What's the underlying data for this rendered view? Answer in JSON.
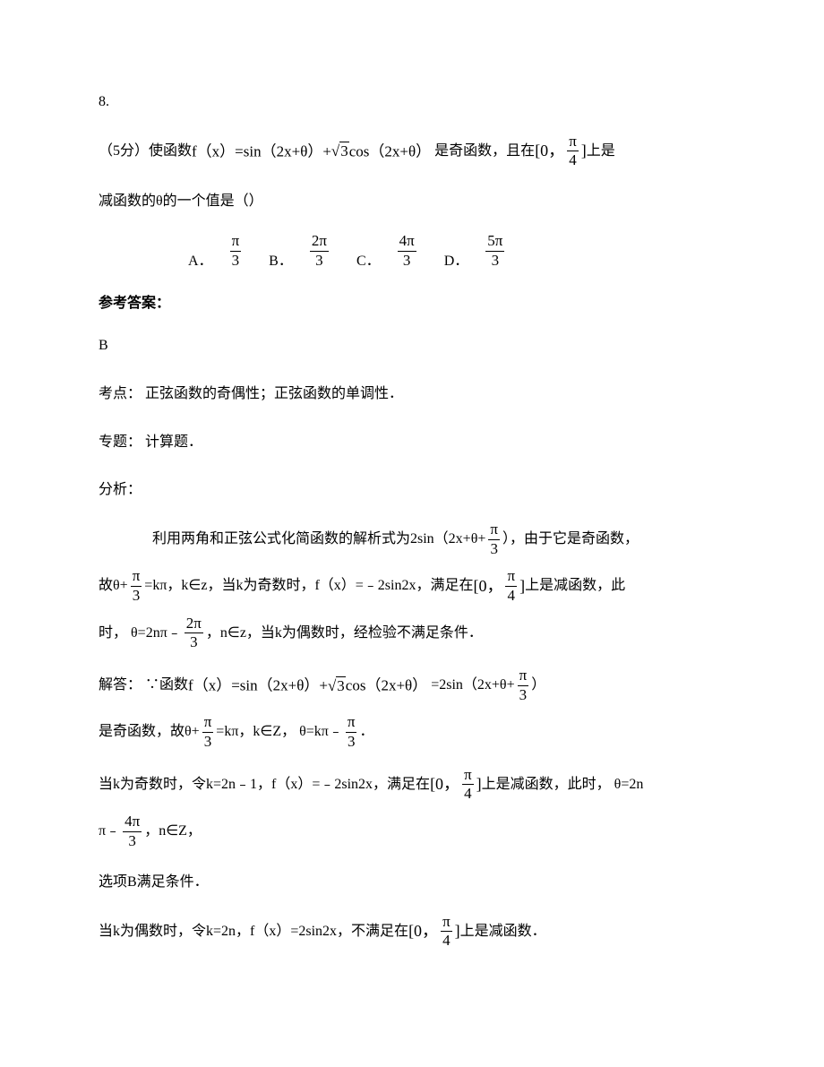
{
  "question_number": "8.",
  "points_prefix": "（5分）使函数",
  "func_expr": "f（x）=sin（2x+θ）+",
  "sqrt_val": "3",
  "func_expr_after": "cos（2x+θ）",
  "after_func": "是奇函数，且在",
  "interval_zero": "[0，",
  "pi_sym": "π",
  "interval_close": "]",
  "denom_4": "4",
  "after_interval": "上是",
  "line2": "减函数的θ的一个值是（）",
  "options": {
    "A": {
      "letter": "A．",
      "num": "π",
      "den": "3"
    },
    "B": {
      "letter": "B．",
      "num": "2π",
      "den": "3"
    },
    "C": {
      "letter": "C．",
      "num": "4π",
      "den": "3"
    },
    "D": {
      "letter": "D．",
      "num": "5π",
      "den": "3"
    }
  },
  "ref_answer_label": "参考答案：",
  "answer_letter": "B",
  "kaodian_label": "考点：",
  "kaodian_text": "正弦函数的奇偶性；正弦函数的单调性．",
  "zhuanti_label": "专题：",
  "zhuanti_text": "计算题．",
  "fenxi_label": "分析：",
  "fenxi_p1_pre": "利用两角和正弦公式化简函数的解析式为2sin（2x+θ+",
  "denom_3": "3",
  "fenxi_p1_after": "），由于它是奇函数，",
  "fenxi_p2_pre": "故θ+",
  "fenxi_p2_mid": "=kπ，k∈z，当k为奇数时，f（x）=﹣2sin2x，满足在",
  "fenxi_p2_after": "上是减函数，此",
  "fenxi_p3_pre": "时， θ=2nπ﹣",
  "num_2pi": "2π",
  "fenxi_p3_after": "，n∈z，当k为偶数时，经检验不满足条件．",
  "jieda_label": "解答：",
  "jieda_p1_pre": "∵函数",
  "jieda_p1_eq": "=2sin（2x+θ+",
  "jieda_p1_after": "）",
  "jieda_p2_pre": "是奇函数，故θ+",
  "jieda_p2_mid": "=kπ，k∈Z， θ=kπ﹣",
  "jieda_p2_after": "．",
  "jieda_p3_pre": "当k为奇数时，令k=2n﹣1，f（x）=﹣2sin2x，满足在",
  "jieda_p3_after": "上是减函数，此时， θ=2n",
  "jieda_p4_pre": "π﹣",
  "num_4pi": "4π",
  "jieda_p4_after": "，n∈Z，",
  "jieda_p5": "选项B满足条件．",
  "jieda_p6_pre": "当k为偶数时，令k=2n，f（x）=2sin2x，不满足在",
  "jieda_p6_after": "上是减函数．"
}
